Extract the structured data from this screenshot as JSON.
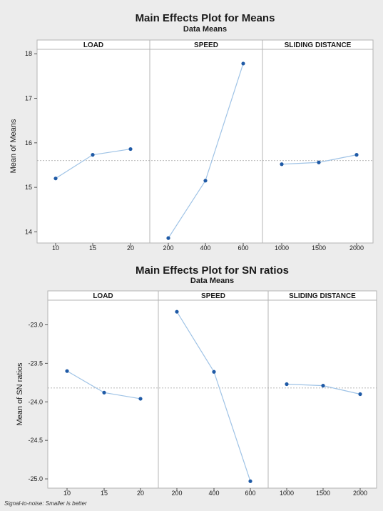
{
  "footnote": "Signal-to-noise: Smaller is better",
  "colors": {
    "line": "#9fc3e6",
    "point": "#1f5aa6",
    "frame": "#b4b4b4",
    "ref": "#a0a0a0",
    "background": "#ececec",
    "plot": "#ffffff"
  },
  "chart_data": [
    {
      "type": "line",
      "title": "Main Effects Plot for Means",
      "subtitle": "Data Means",
      "ylabel": "Mean of Means",
      "ylim": [
        13.75,
        18.1
      ],
      "yticks": [
        14,
        15,
        16,
        17,
        18
      ],
      "yticklabels": [
        "14",
        "15",
        "16",
        "17",
        "18"
      ],
      "reference": 15.6,
      "panels": [
        {
          "name": "LOAD",
          "categories": [
            "10",
            "15",
            "20"
          ],
          "values": [
            15.2,
            15.73,
            15.86
          ]
        },
        {
          "name": "SPEED",
          "categories": [
            "200",
            "400",
            "600"
          ],
          "values": [
            13.86,
            15.15,
            17.78
          ]
        },
        {
          "name": "SLIDING DISTANCE",
          "categories": [
            "1000",
            "1500",
            "2000"
          ],
          "values": [
            15.52,
            15.56,
            15.73
          ]
        }
      ]
    },
    {
      "type": "line",
      "title": "Main Effects Plot for SN ratios",
      "subtitle": "Data Means",
      "ylabel": "Mean of SN ratios",
      "ylim": [
        -25.12,
        -22.68
      ],
      "yticks": [
        -23.0,
        -23.5,
        -24.0,
        -24.5,
        -25.0
      ],
      "yticklabels": [
        "-23.0",
        "-23.5",
        "-24.0",
        "-24.5",
        "-25.0"
      ],
      "reference": -23.82,
      "panels": [
        {
          "name": "LOAD",
          "categories": [
            "10",
            "15",
            "20"
          ],
          "values": [
            -23.6,
            -23.88,
            -23.96
          ]
        },
        {
          "name": "SPEED",
          "categories": [
            "200",
            "400",
            "600"
          ],
          "values": [
            -22.83,
            -23.61,
            -25.03
          ]
        },
        {
          "name": "SLIDING DISTANCE",
          "categories": [
            "1000",
            "1500",
            "2000"
          ],
          "values": [
            -23.77,
            -23.79,
            -23.9
          ]
        }
      ]
    }
  ]
}
